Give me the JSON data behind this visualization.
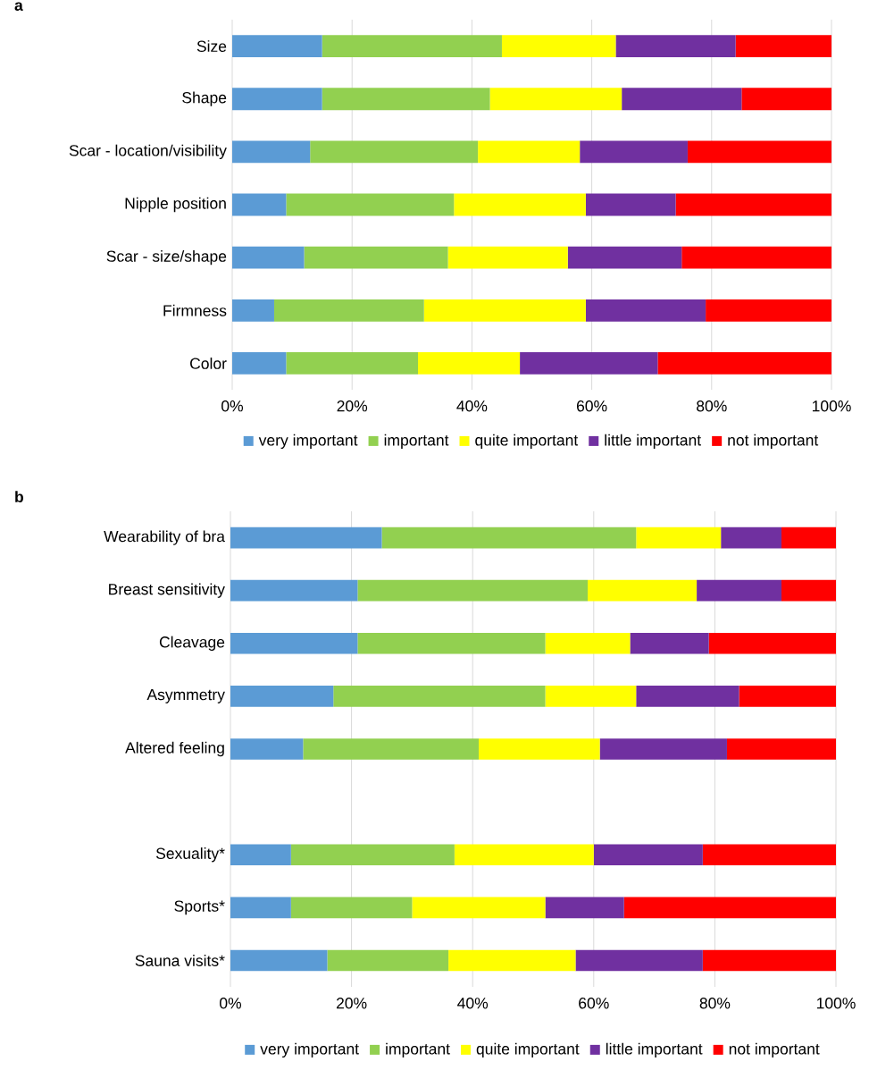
{
  "chart_data": [
    {
      "type": "bar",
      "title": "a",
      "orientation": "horizontal",
      "stacked": true,
      "grid": "x",
      "legend": "bottom",
      "categories": [
        "Size",
        "Shape",
        "Scar - location/visibility",
        "Nipple position",
        "Scar - size/shape",
        "Firmness",
        "Color"
      ],
      "xlim": [
        0,
        100
      ],
      "xticks": [
        {
          "value": 0,
          "label": "0%"
        },
        {
          "value": 20,
          "label": "20%"
        },
        {
          "value": 40,
          "label": "40%"
        },
        {
          "value": 60,
          "label": "60%"
        },
        {
          "value": 80,
          "label": "80%"
        },
        {
          "value": 100,
          "label": "100%"
        }
      ],
      "series": [
        {
          "name": "very important",
          "color": "#5b9bd5",
          "values": [
            15,
            15,
            13,
            9,
            12,
            7,
            9
          ]
        },
        {
          "name": "important",
          "color": "#92d050",
          "values": [
            30,
            28,
            28,
            28,
            24,
            25,
            22
          ]
        },
        {
          "name": "quite important",
          "color": "#ffff00",
          "values": [
            19,
            22,
            17,
            22,
            20,
            27,
            17
          ]
        },
        {
          "name": "little important",
          "color": "#7030a0",
          "values": [
            20,
            20,
            18,
            15,
            19,
            20,
            23
          ]
        },
        {
          "name": "not important",
          "color": "#ff0000",
          "values": [
            16,
            15,
            24,
            26,
            25,
            21,
            29
          ]
        }
      ]
    },
    {
      "type": "bar",
      "title": "b",
      "orientation": "horizontal",
      "stacked": true,
      "grid": "x",
      "legend": "bottom",
      "categories": [
        "Wearability of bra",
        "Breast sensitivity",
        "Cleavage",
        "Asymmetry",
        "Altered feeling",
        null,
        "Sexuality*",
        "Sports*",
        "Sauna visits*"
      ],
      "xlim": [
        0,
        100
      ],
      "xticks": [
        {
          "value": 0,
          "label": "0%"
        },
        {
          "value": 20,
          "label": "20%"
        },
        {
          "value": 40,
          "label": "40%"
        },
        {
          "value": 60,
          "label": "60%"
        },
        {
          "value": 80,
          "label": "80%"
        },
        {
          "value": 100,
          "label": "100%"
        }
      ],
      "series": [
        {
          "name": "very important",
          "color": "#5b9bd5",
          "values": [
            25,
            21,
            21,
            17,
            12,
            null,
            10,
            10,
            16
          ]
        },
        {
          "name": "important",
          "color": "#92d050",
          "values": [
            42,
            38,
            31,
            35,
            29,
            null,
            27,
            20,
            20
          ]
        },
        {
          "name": "quite important",
          "color": "#ffff00",
          "values": [
            14,
            18,
            14,
            15,
            20,
            null,
            23,
            22,
            21
          ]
        },
        {
          "name": "little important",
          "color": "#7030a0",
          "values": [
            10,
            14,
            13,
            17,
            21,
            null,
            18,
            13,
            21
          ]
        },
        {
          "name": "not important",
          "color": "#ff0000",
          "values": [
            9,
            9,
            21,
            16,
            18,
            null,
            22,
            35,
            22
          ]
        }
      ]
    }
  ]
}
